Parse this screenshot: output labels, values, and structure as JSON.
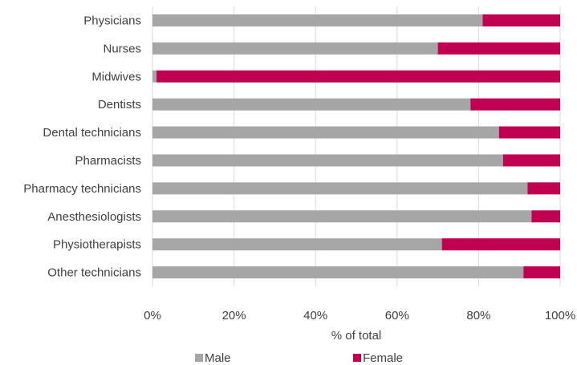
{
  "chart_data": {
    "type": "bar",
    "orientation": "horizontal",
    "stacked": true,
    "categories": [
      "Physicians",
      "Nurses",
      "Midwives",
      "Dentists",
      "Dental technicians",
      "Pharmacists",
      "Pharmacy technicians",
      "Anesthesiologists",
      "Physiotherapists",
      "Other technicians"
    ],
    "series": [
      {
        "name": "Male",
        "values": [
          81,
          70,
          1,
          78,
          85,
          86,
          92,
          93,
          71,
          91
        ],
        "color": "#a6a6a6"
      },
      {
        "name": "Female",
        "values": [
          19,
          30,
          99,
          22,
          15,
          14,
          8,
          7,
          29,
          9
        ],
        "color": "#c00050"
      }
    ],
    "xticks": [
      "0%",
      "20%",
      "40%",
      "60%",
      "80%",
      "100%"
    ],
    "xlabel": "% of total",
    "xlim": [
      0,
      100
    ],
    "grid": true,
    "legend_position": "bottom"
  }
}
